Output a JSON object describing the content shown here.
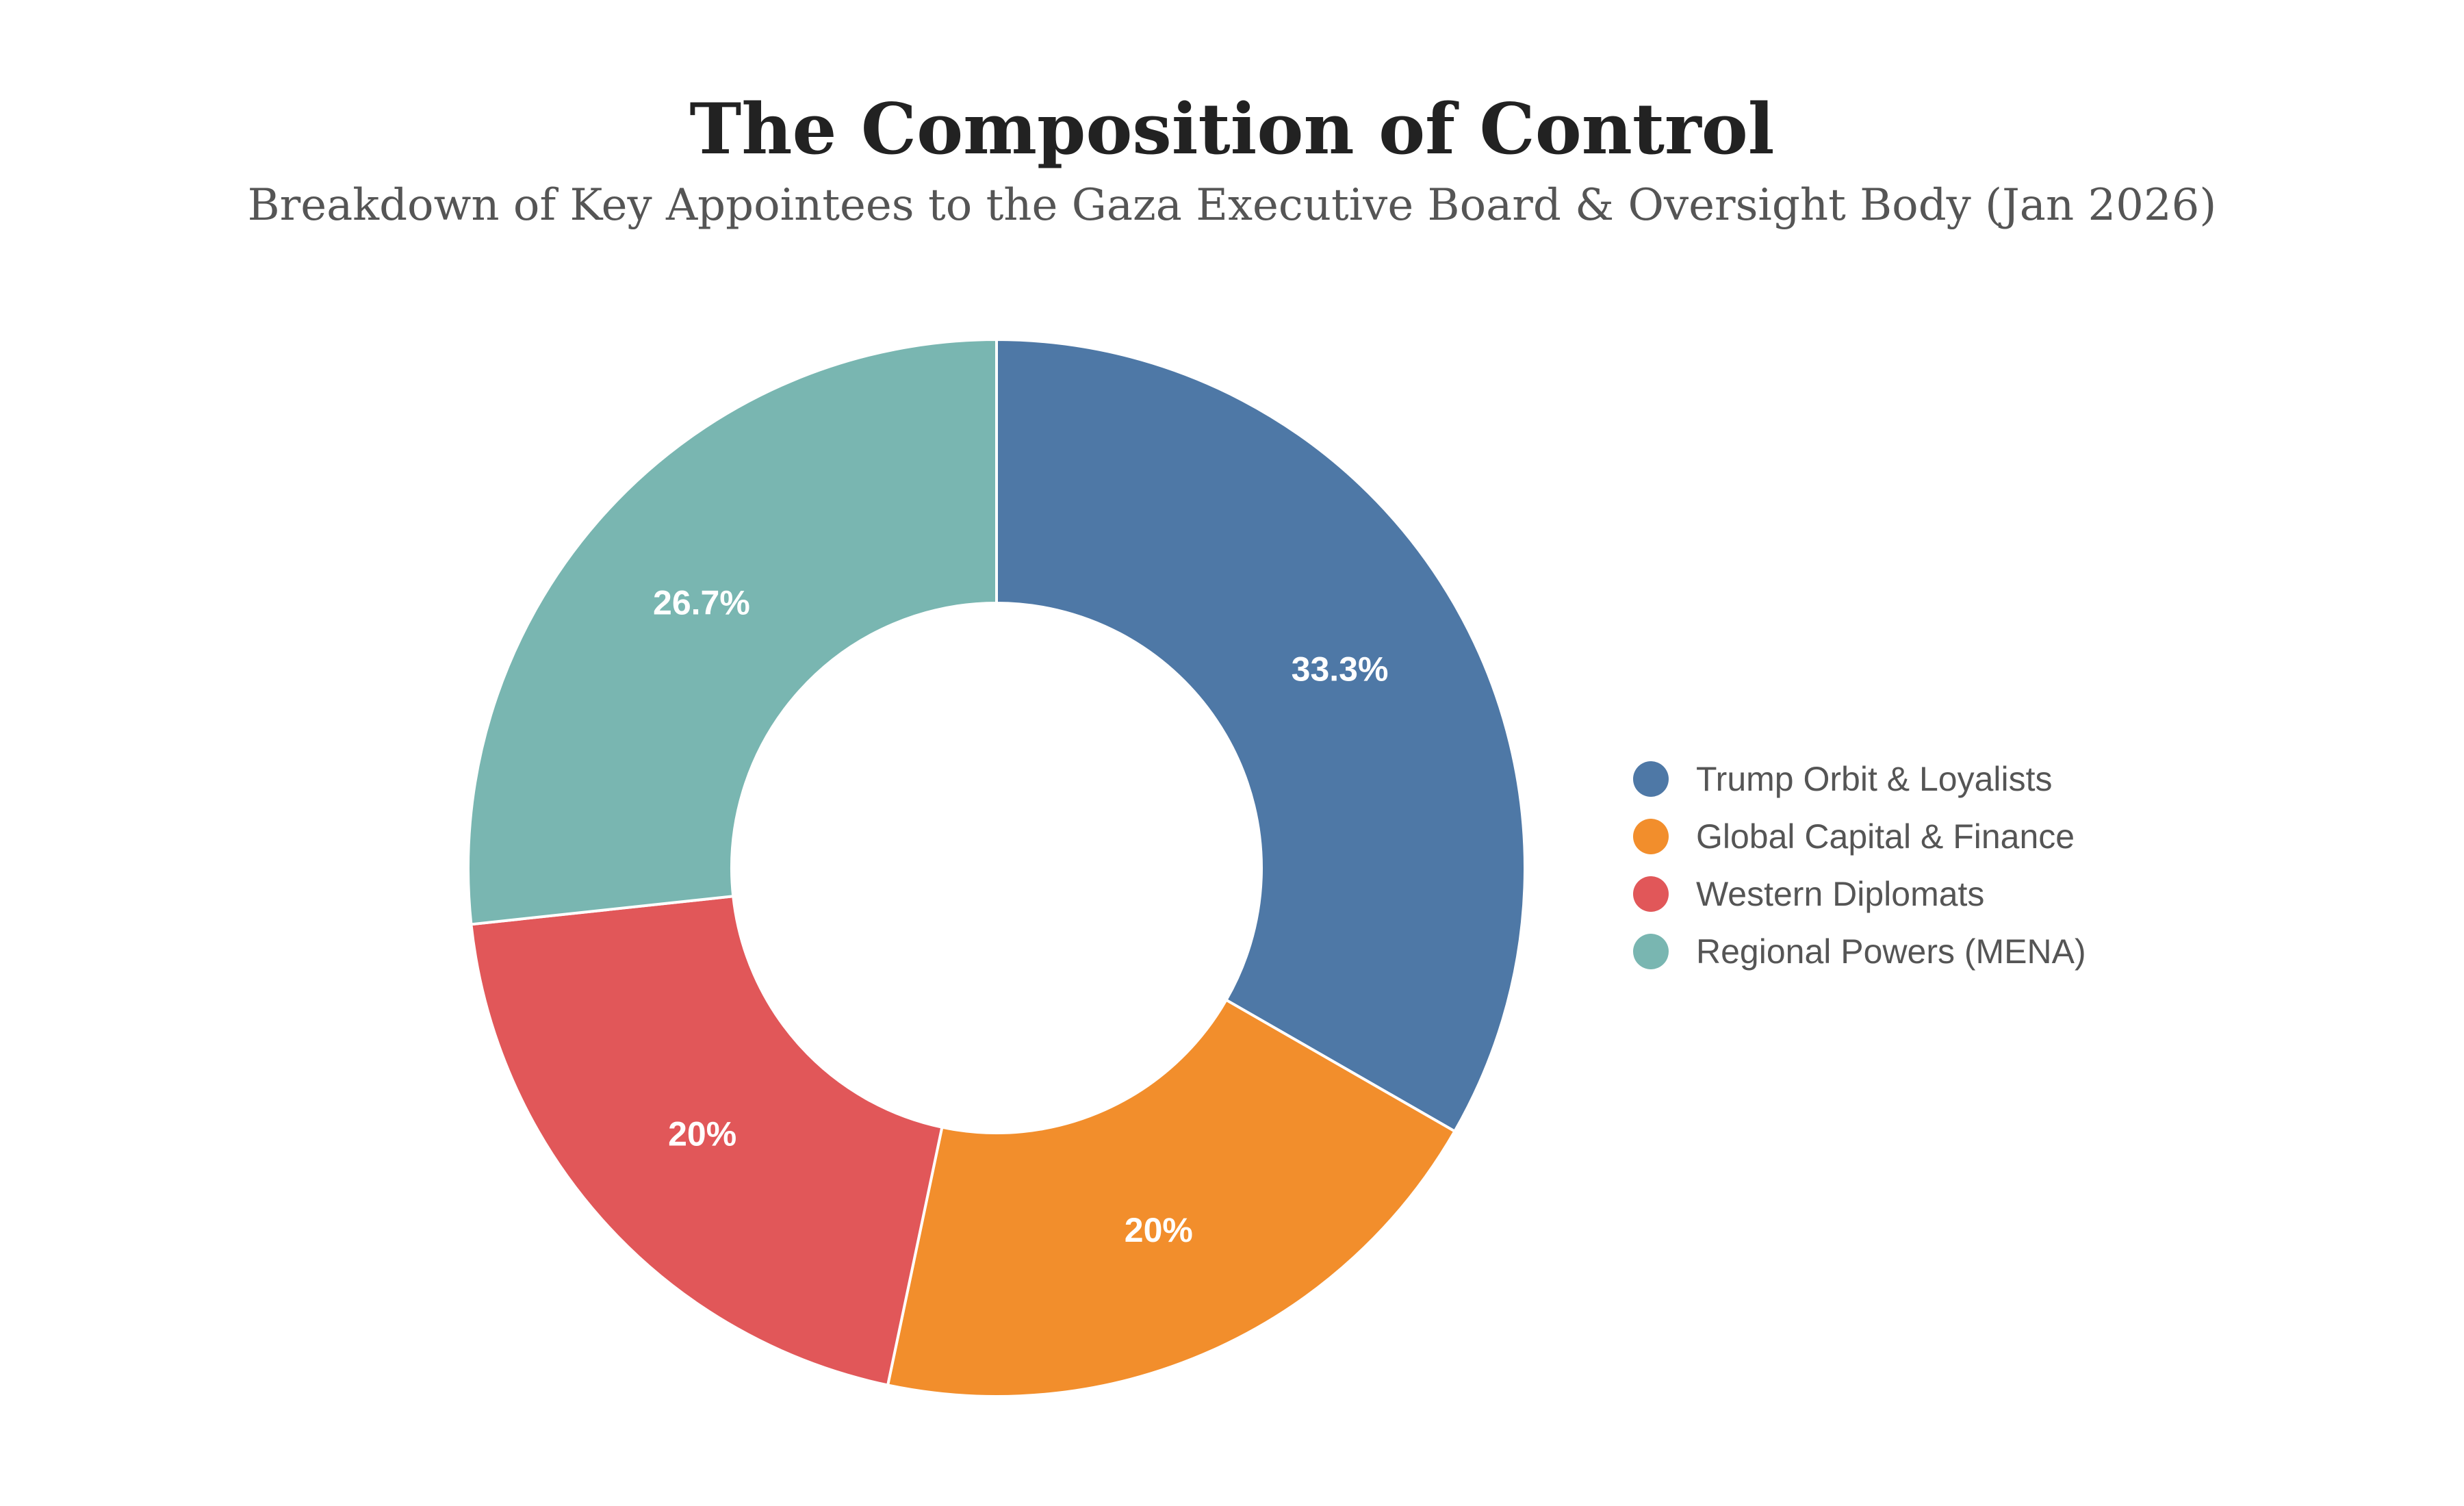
{
  "chart_data": {
    "type": "pie",
    "title": "The Composition of Control",
    "subtitle": "Breakdown of Key Appointees to the Gaza Executive Board & Oversight Body (Jan 2026)",
    "categories": [
      "Trump Orbit & Loyalists",
      "Global Capital & Finance",
      "Western Diplomats",
      "Regional Powers (MENA)"
    ],
    "values": [
      33.3,
      20,
      20,
      26.7
    ],
    "labels": [
      "33.3%",
      "20%",
      "20%",
      "26.7%"
    ],
    "colors": [
      "#4e78a6",
      "#f28e2c",
      "#e15759",
      "#79b6b1"
    ],
    "hole": true,
    "legend_position": "right"
  }
}
